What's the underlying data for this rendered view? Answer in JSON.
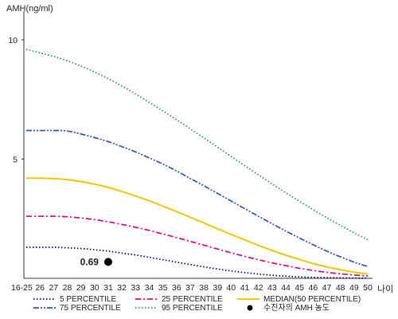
{
  "chart_data": {
    "type": "line",
    "ylabel": "AMH(ng/ml)",
    "xlabel": "나이",
    "categories": [
      "16-25",
      "26",
      "27",
      "28",
      "29",
      "30",
      "31",
      "32",
      "33",
      "34",
      "35",
      "36",
      "37",
      "38",
      "39",
      "40",
      "41",
      "42",
      "43",
      "44",
      "45",
      "46",
      "47",
      "48",
      "49",
      "50"
    ],
    "y_ticks": [
      5,
      10
    ],
    "ylim": [
      0,
      11.2
    ],
    "grid": false,
    "legend_position": "bottom",
    "series": [
      {
        "name": "5 PERCENTILE",
        "color": "#000080",
        "dash": "dotted",
        "values": [
          1.3,
          1.3,
          1.3,
          1.28,
          1.25,
          1.2,
          1.14,
          1.06,
          0.98,
          0.88,
          0.78,
          0.68,
          0.58,
          0.48,
          0.39,
          0.31,
          0.24,
          0.18,
          0.13,
          0.09,
          0.06,
          0.04,
          0.03,
          0.02,
          0.01,
          0.01
        ]
      },
      {
        "name": "25 PERCENTILE",
        "color": "#e0007a",
        "dash": "dashdot",
        "values": [
          2.6,
          2.6,
          2.6,
          2.58,
          2.53,
          2.46,
          2.37,
          2.26,
          2.14,
          2.01,
          1.86,
          1.71,
          1.55,
          1.39,
          1.23,
          1.07,
          0.92,
          0.78,
          0.65,
          0.53,
          0.42,
          0.33,
          0.25,
          0.19,
          0.14,
          0.1
        ]
      },
      {
        "name": "MEDIAN(50 PERCENTILE)",
        "color": "#f2c600",
        "dash": "solid",
        "values": [
          4.2,
          4.2,
          4.18,
          4.14,
          4.06,
          3.95,
          3.81,
          3.64,
          3.45,
          3.25,
          3.03,
          2.8,
          2.56,
          2.32,
          2.08,
          1.84,
          1.61,
          1.38,
          1.17,
          0.97,
          0.79,
          0.62,
          0.48,
          0.36,
          0.26,
          0.18
        ]
      },
      {
        "name": "75 PERCENTILE",
        "color": "#3050c0",
        "dash": "dashdotdot",
        "values": [
          6.2,
          6.2,
          6.2,
          6.18,
          6.05,
          5.9,
          5.73,
          5.52,
          5.3,
          5.05,
          4.79,
          4.5,
          4.19,
          3.88,
          3.56,
          3.24,
          2.92,
          2.6,
          2.29,
          1.98,
          1.69,
          1.41,
          1.14,
          0.9,
          0.68,
          0.49
        ]
      },
      {
        "name": "95 PERCENTILE",
        "color": "#2e8b57",
        "dash": "dotted",
        "values": [
          9.6,
          9.45,
          9.3,
          9.12,
          8.9,
          8.65,
          8.37,
          8.06,
          7.73,
          7.38,
          7.02,
          6.65,
          6.27,
          5.89,
          5.5,
          5.11,
          4.72,
          4.34,
          3.96,
          3.59,
          3.23,
          2.88,
          2.54,
          2.22,
          1.91,
          1.62
        ]
      }
    ],
    "annotation": {
      "label": "0.69",
      "x": "31",
      "y": 0.69
    },
    "marker_legend": {
      "label": "수진자의 AMH 농도",
      "color": "#000000"
    }
  }
}
